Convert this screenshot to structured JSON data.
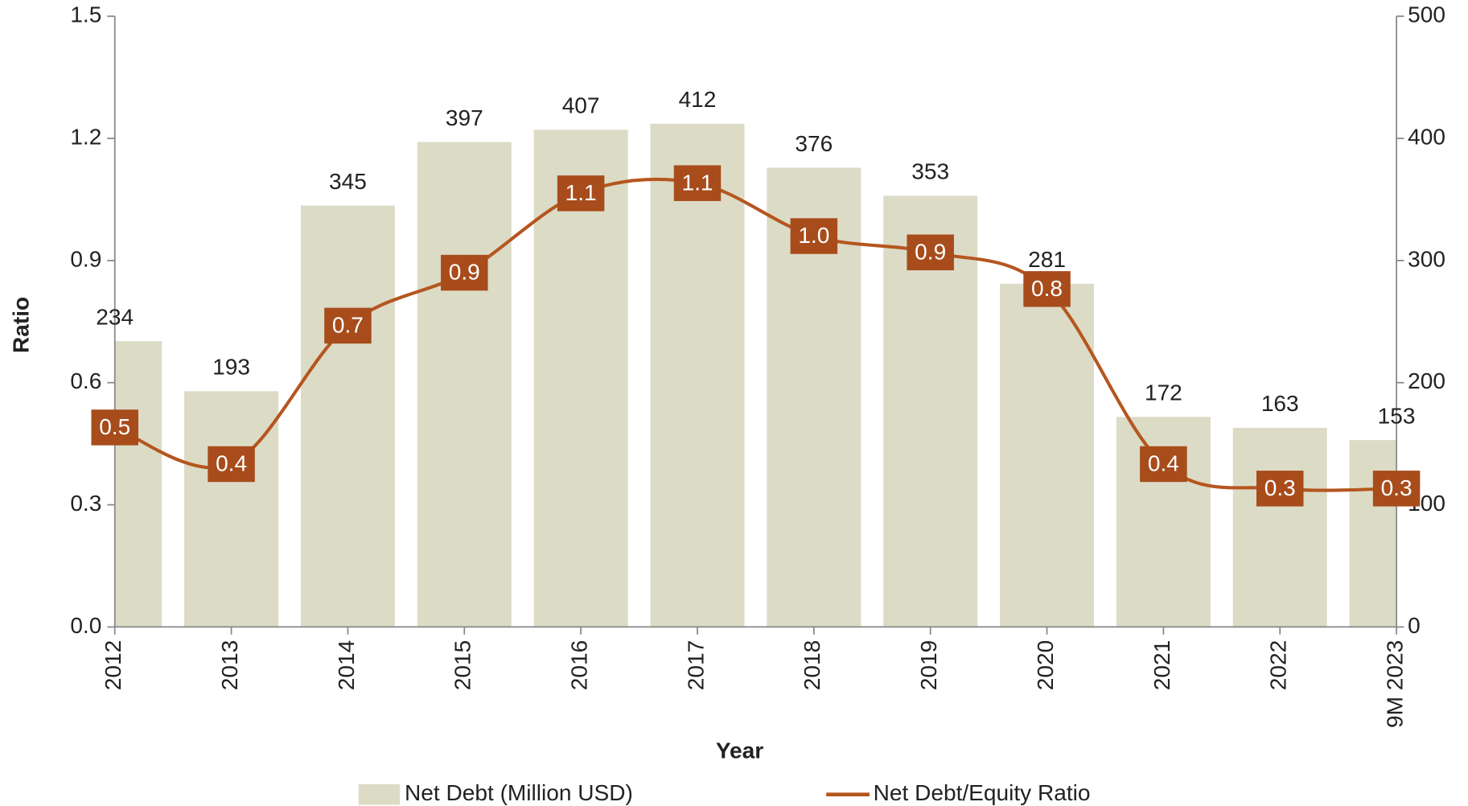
{
  "chart_data": {
    "type": "bar_line",
    "x_label": "Year",
    "y_label": "Ratio",
    "categories": [
      "2012",
      "2013",
      "2014",
      "2015",
      "2016",
      "2017",
      "2018",
      "2019",
      "2020",
      "2021",
      "2022",
      "9M 2023"
    ],
    "series": [
      {
        "name": "Net Debt (Million USD)",
        "color": "#dcdbc6",
        "type": "bar",
        "axis": "y2",
        "values": [
          234,
          193,
          345,
          397,
          407,
          412,
          376,
          353,
          281,
          172,
          163,
          153
        ]
      },
      {
        "name": "Net Debt/Equity Ratio",
        "color": "#b5561f",
        "label_color": "#a84c1c",
        "type": "line",
        "axis": "y",
        "values": [
          0.49,
          0.4,
          0.74,
          0.87,
          1.065,
          1.09,
          0.96,
          0.92,
          0.83,
          0.4,
          0.34,
          0.34
        ],
        "value_labels": [
          "0.5",
          "0.4",
          "0.7",
          "0.9",
          "1.1",
          "1.1",
          "1.0",
          "0.9",
          "0.8",
          "0.4",
          "0.3",
          "0.3"
        ]
      }
    ],
    "ylim": [
      0,
      1.5
    ],
    "yticks": [
      {
        "value": 0,
        "label": "0.0"
      },
      0.3,
      0.6,
      0.9,
      1.2,
      1.5
    ],
    "y2lim": [
      0,
      500
    ],
    "y2ticks": [
      0,
      100,
      200,
      300,
      400,
      500
    ],
    "legend": "bottom"
  }
}
